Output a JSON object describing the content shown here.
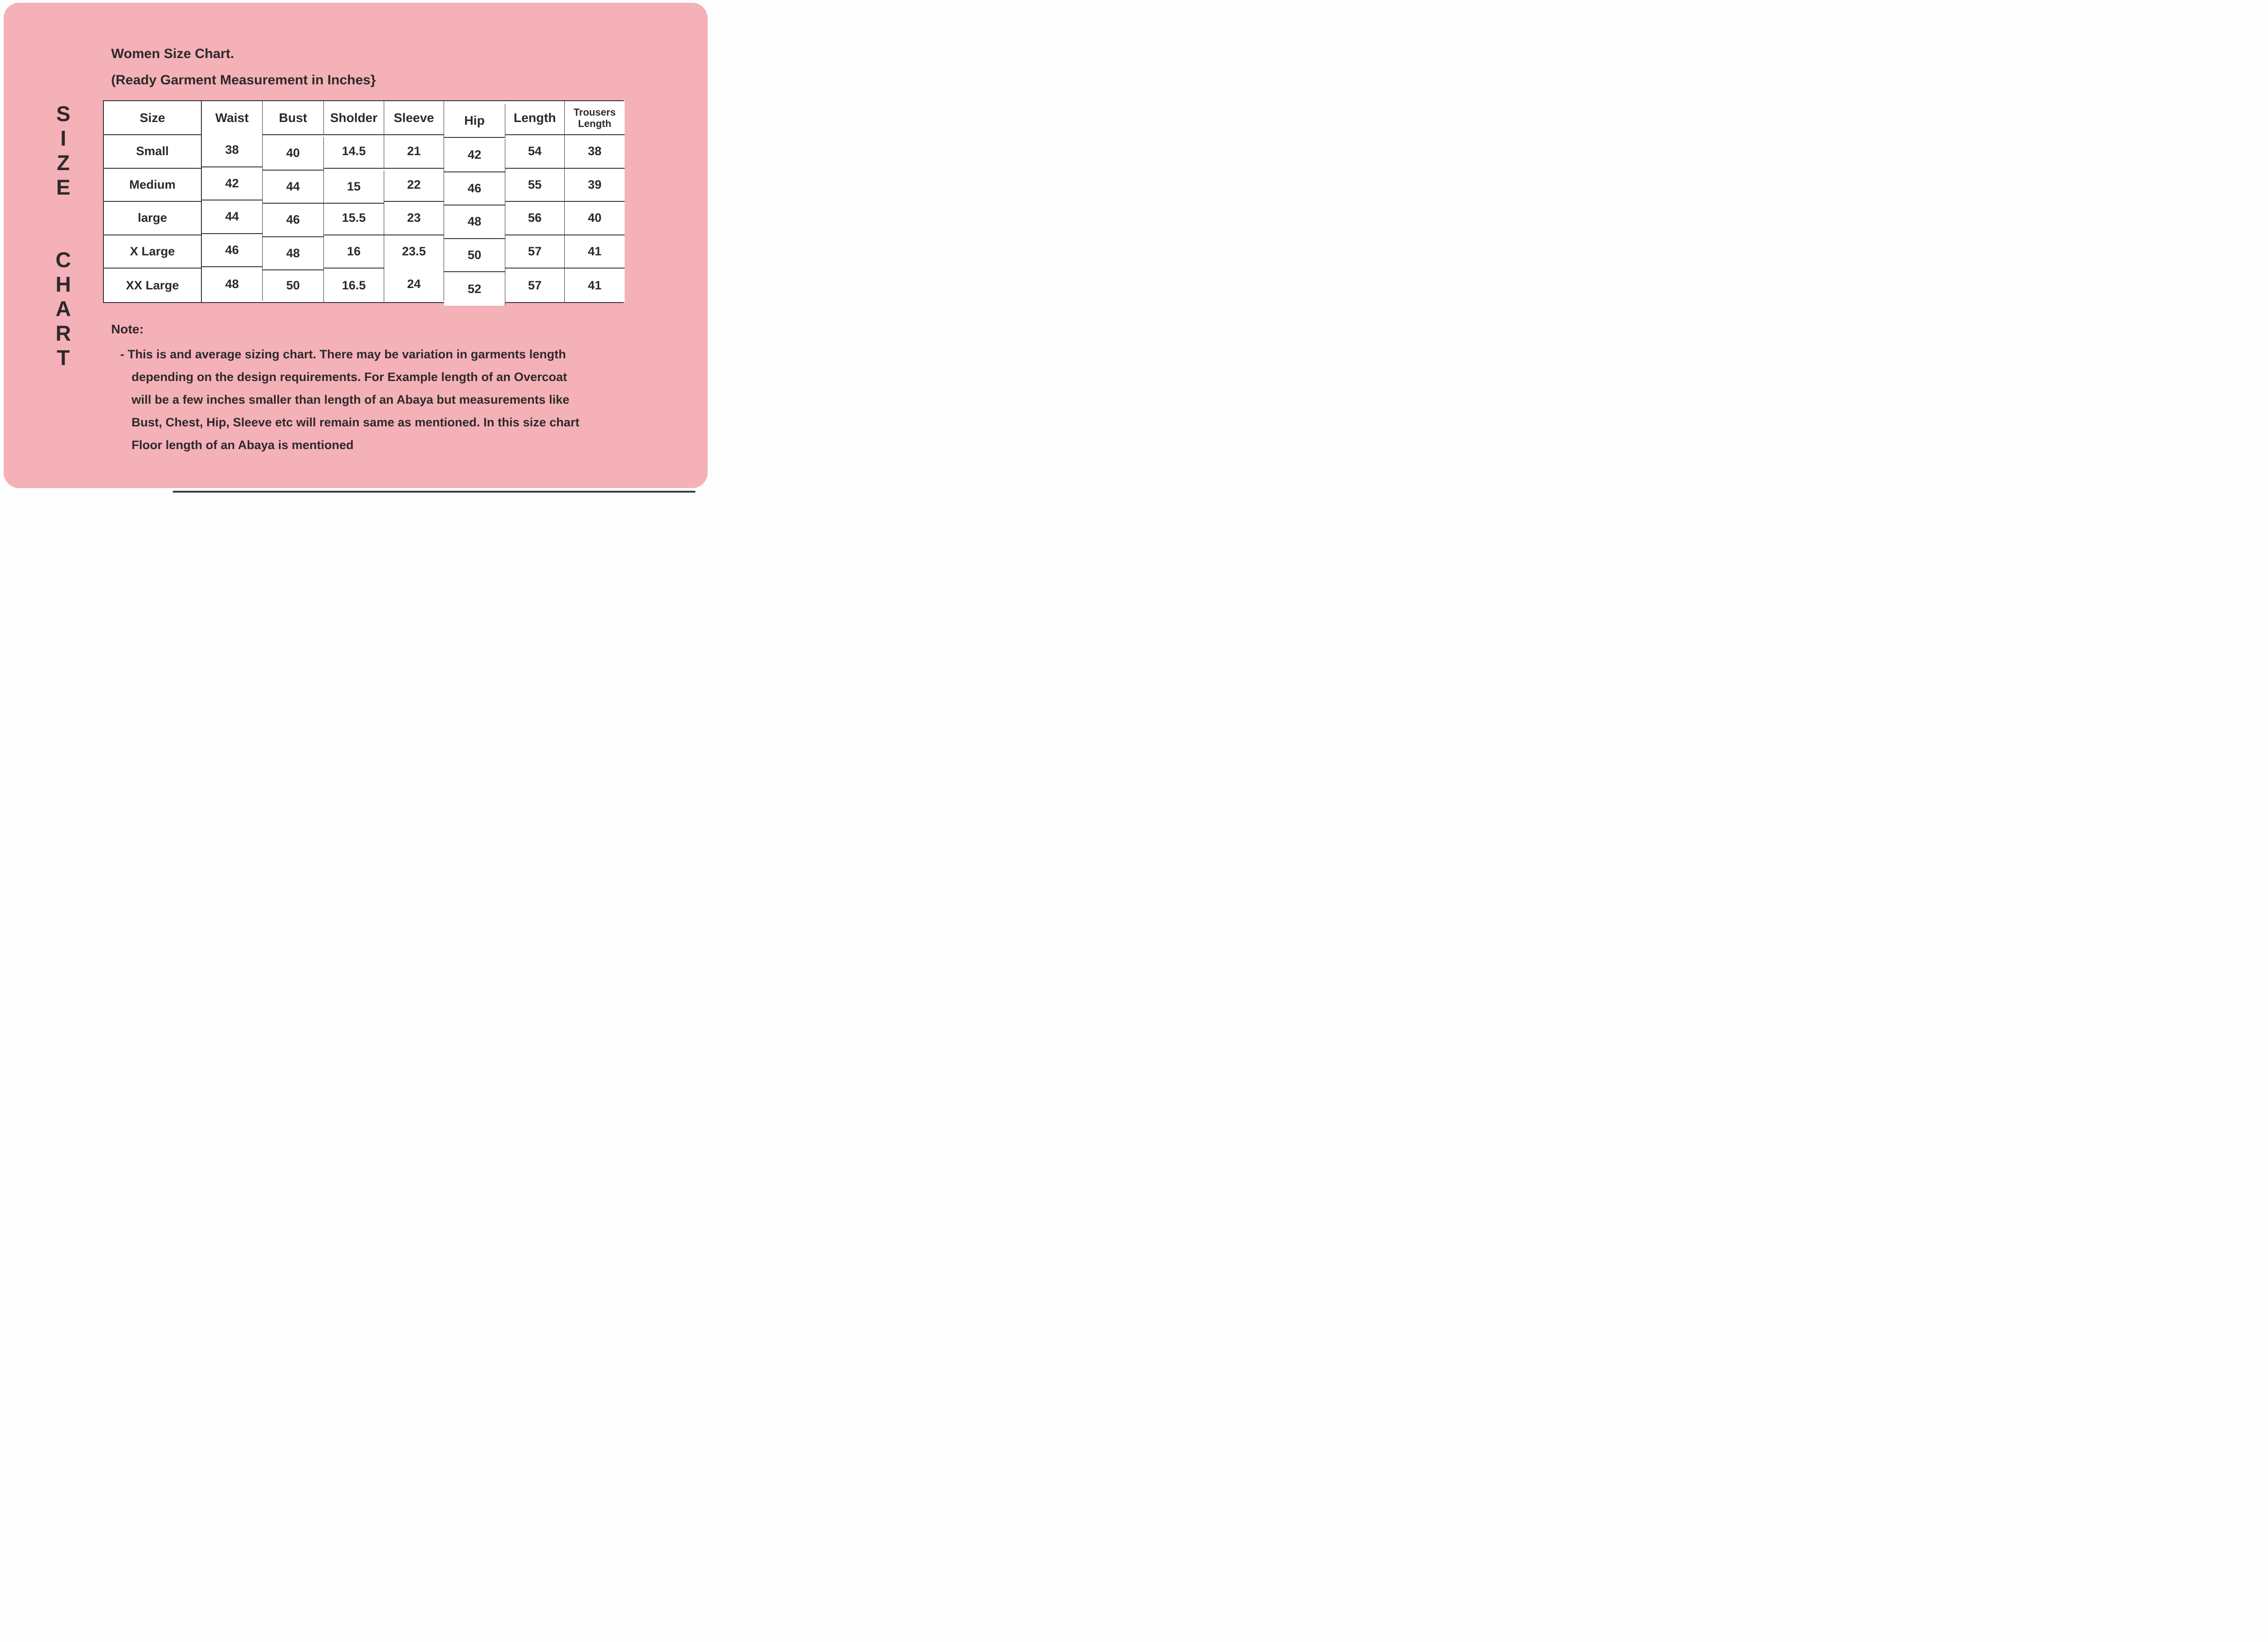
{
  "colors": {
    "card_pink": "#f4b1b7",
    "text_dark": "#2d292b",
    "table_border": "#3a3133",
    "cell_white": "#ffffff"
  },
  "vertical_title": {
    "word1": "S\nI\nZ\nE",
    "word2": "C\nH\nA\nR\nT"
  },
  "heading": {
    "title": "Women Size Chart.",
    "subtitle": "(Ready Garment Measurement in Inches}"
  },
  "chart_data": {
    "type": "table",
    "title": "Women Size Chart (Ready Garment Measurement in Inches)",
    "columns": [
      "Size",
      "Waist",
      "Bust",
      "Sholder",
      "Sleeve",
      "Hip",
      "Length",
      "Trousers Length"
    ],
    "rows": [
      {
        "size": "Small",
        "waist": "38",
        "bust": "40",
        "sholder": "14.5",
        "sleeve": "21",
        "hip": "42",
        "length": "54",
        "trousers_length": "38"
      },
      {
        "size": "Medium",
        "waist": "42",
        "bust": "44",
        "sholder": "15",
        "sleeve": "22",
        "hip": "46",
        "length": "55",
        "trousers_length": "39"
      },
      {
        "size": "large",
        "waist": "44",
        "bust": "46",
        "sholder": "15.5",
        "sleeve": "23",
        "hip": "48",
        "length": "56",
        "trousers_length": "40"
      },
      {
        "size": "X Large",
        "waist": "46",
        "bust": "48",
        "sholder": "16",
        "sleeve": "23.5",
        "hip": "50",
        "length": "57",
        "trousers_length": "41"
      },
      {
        "size": "XX Large",
        "waist": "48",
        "bust": "50",
        "sholder": "16.5",
        "sleeve": "24",
        "hip": "52",
        "length": "57",
        "trousers_length": "41"
      }
    ]
  },
  "note": {
    "label": "Note:",
    "lines": [
      "- This is and average sizing chart. There may be variation in garments length",
      "depending on the design requirements. For Example length of an Overcoat",
      "will be a few inches smaller than length of an Abaya but measurements like",
      "Bust, Chest, Hip, Sleeve etc will remain same as mentioned. In this size chart",
      "Floor length of an Abaya is mentioned"
    ]
  }
}
